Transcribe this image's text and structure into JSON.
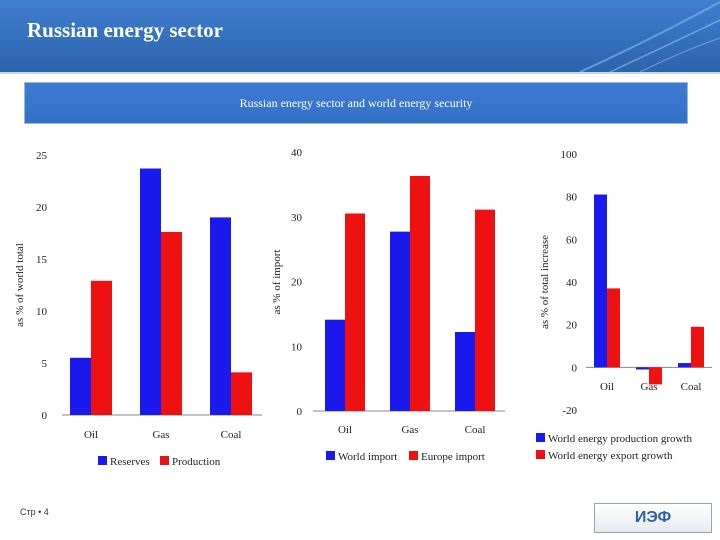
{
  "header": {
    "title": "Russian energy sector"
  },
  "banner": {
    "text": "Russian energy sector and world energy security"
  },
  "footer": {
    "page": "Стр • 4",
    "logo": "ИЭФ"
  },
  "colors": {
    "blue": "#1a1aee",
    "red": "#ee1111",
    "header": "#3a74c4"
  },
  "chart_data": [
    {
      "type": "bar",
      "categories": [
        "Oil",
        "Gas",
        "Coal"
      ],
      "series": [
        {
          "name": "Reserves",
          "color": "#1a1aee",
          "values": [
            5.5,
            23.7,
            19
          ]
        },
        {
          "name": "Production",
          "color": "#ee1111",
          "values": [
            12.9,
            17.6,
            4.1
          ]
        }
      ],
      "ylabel": "as % of world total",
      "ylim": [
        0,
        25
      ],
      "yticks": [
        "0",
        "5",
        "10",
        "15",
        "20",
        "25"
      ],
      "legend": "bottom"
    },
    {
      "type": "bar",
      "categories": [
        "Oil",
        "Gas",
        "Coal"
      ],
      "series": [
        {
          "name": "World import",
          "color": "#1a1aee",
          "values": [
            14.1,
            27.7,
            12.2
          ]
        },
        {
          "name": "Europe import",
          "color": "#ee1111",
          "values": [
            30.5,
            36.3,
            31.1
          ]
        }
      ],
      "ylabel": "as % of import",
      "ylim": [
        0,
        40
      ],
      "yticks": [
        "0",
        "10",
        "20",
        "30",
        "40"
      ],
      "legend": "bottom"
    },
    {
      "type": "bar",
      "categories": [
        "Oil",
        "Gas",
        "Coal"
      ],
      "series": [
        {
          "name": "World energy production growth",
          "color": "#1a1aee",
          "values": [
            81,
            -1,
            2
          ]
        },
        {
          "name": "World energy export growth",
          "color": "#ee1111",
          "values": [
            37,
            -8,
            19
          ]
        }
      ],
      "ylabel": "as % of total increase",
      "ylim": [
        -20,
        100
      ],
      "yticks": [
        "-20",
        "0",
        "20",
        "40",
        "60",
        "80",
        "100"
      ],
      "legend": "bottom"
    }
  ]
}
